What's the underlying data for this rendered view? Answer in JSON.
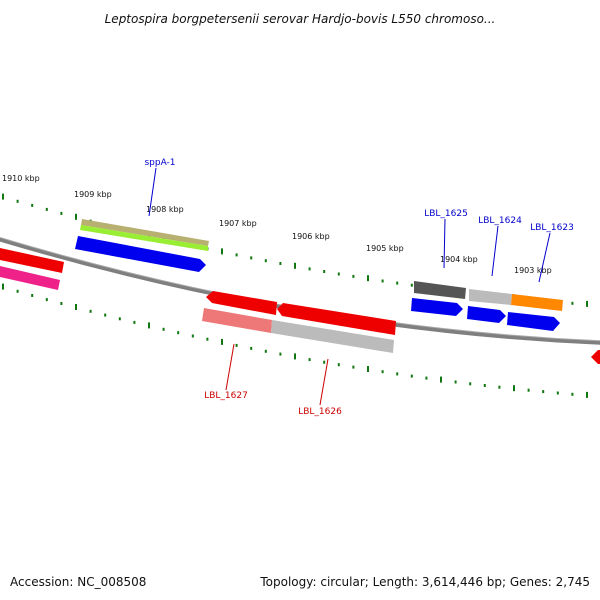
{
  "title": "Leptospira borgpetersenii serovar Hardjo-bovis L550 chromoso...",
  "footer": {
    "accession": "Accession: NC_008508",
    "summary": "Topology: circular; Length: 3,614,446 bp; Genes: 2,745"
  },
  "colors": {
    "backbone": "#7f7f7f",
    "tick": "#117711",
    "forward_label": "#0000cc",
    "reverse_label": "#cc0000"
  },
  "scale_labels": [
    "1910 kbp",
    "1909 kbp",
    "1908 kbp",
    "1907 kbp",
    "1906 kbp",
    "1905 kbp",
    "1904 kbp",
    "1903 kbp"
  ],
  "forward_labels": [
    "sppA-1",
    "LBL_1625",
    "LBL_1624",
    "LBL_1623"
  ],
  "reverse_labels": [
    "LBL_1627",
    "LBL_1626"
  ],
  "feature_colors": {
    "cds": "#0000ee",
    "rna_like": "#b8b070",
    "green": "#99ee33",
    "red": "#ee0000",
    "magenta": "#ee2288",
    "pink": "#ee7777",
    "grey_light": "#bbbbbb",
    "grey_dark": "#555555",
    "orange": "#ff8800"
  }
}
